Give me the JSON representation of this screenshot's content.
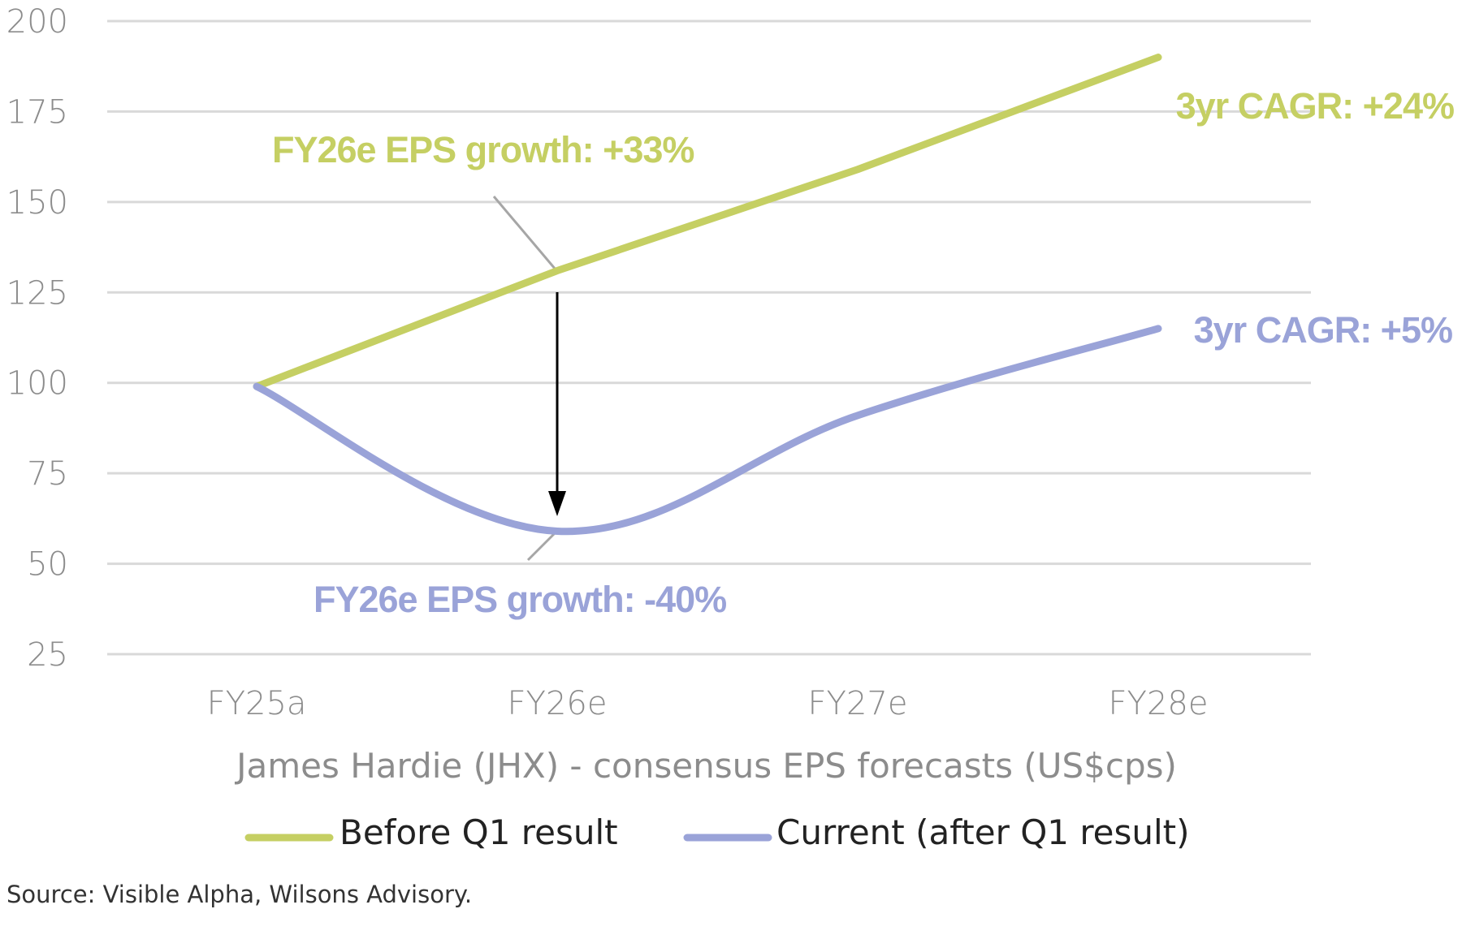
{
  "chart_data": {
    "type": "line",
    "title": "James Hardie (JHX) - consensus EPS forecasts (US$cps)",
    "categories": [
      "FY25a",
      "FY26e",
      "FY27e",
      "FY28e"
    ],
    "ylim": [
      25,
      200
    ],
    "yticks": [
      "200",
      "175",
      "150",
      "125",
      "100",
      "75",
      "50",
      "25"
    ],
    "ytick_values": [
      200,
      175,
      150,
      125,
      100,
      75,
      50,
      25
    ],
    "grid": true,
    "legend_position": "bottom",
    "series": [
      {
        "name": "Before Q1 result",
        "values": [
          99,
          131,
          159,
          190
        ],
        "color": "#c5cf63"
      },
      {
        "name": "Current (after Q1 result)",
        "values": [
          99,
          59,
          91,
          115
        ],
        "color": "#9aa3d8"
      }
    ],
    "annotations": {
      "before_growth": "FY26e EPS growth: +33%",
      "current_growth": "FY26e EPS growth: -40%",
      "before_cagr": "3yr CAGR: +24%",
      "current_cagr": "3yr CAGR: +5%"
    },
    "source": "Source: Visible Alpha, Wilsons Advisory."
  }
}
